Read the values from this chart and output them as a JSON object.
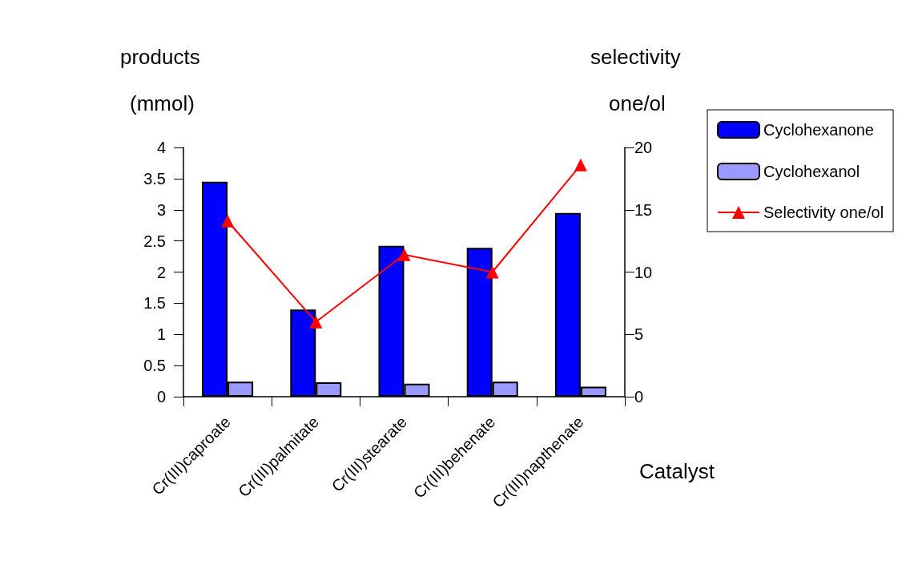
{
  "chart_data": {
    "type": "bar",
    "categories": [
      "Cr(III)caproate",
      "Cr(III)palmitate",
      "Cr(III)stearate",
      "Cr(III)behenate",
      "Cr(III)napthenate"
    ],
    "xlabel": "Catalyst",
    "ylabel": "products\n(mmol)",
    "y2label": "selectivity\none/ol",
    "series": [
      {
        "name": "Cyclohexanone",
        "color": "#0000ff",
        "values": [
          3.45,
          1.4,
          2.42,
          2.39,
          2.95
        ]
      },
      {
        "name": "Cyclohexanol",
        "color": "#9999ff",
        "values": [
          0.24,
          0.23,
          0.21,
          0.24,
          0.16
        ]
      },
      {
        "name": "Selectivity one/ol",
        "type": "line",
        "axis": "y2",
        "color": "#ff0000",
        "marker": "triangle",
        "values": [
          14.1,
          6.0,
          11.4,
          10.0,
          18.6
        ]
      }
    ],
    "ylim": [
      0,
      4
    ],
    "yticks": [
      0,
      0.5,
      1,
      1.5,
      2,
      2.5,
      3,
      3.5,
      4
    ],
    "y2lim": [
      0,
      20
    ],
    "y2ticks": [
      0,
      5,
      10,
      15,
      20
    ],
    "grid": false,
    "legend": "right"
  }
}
